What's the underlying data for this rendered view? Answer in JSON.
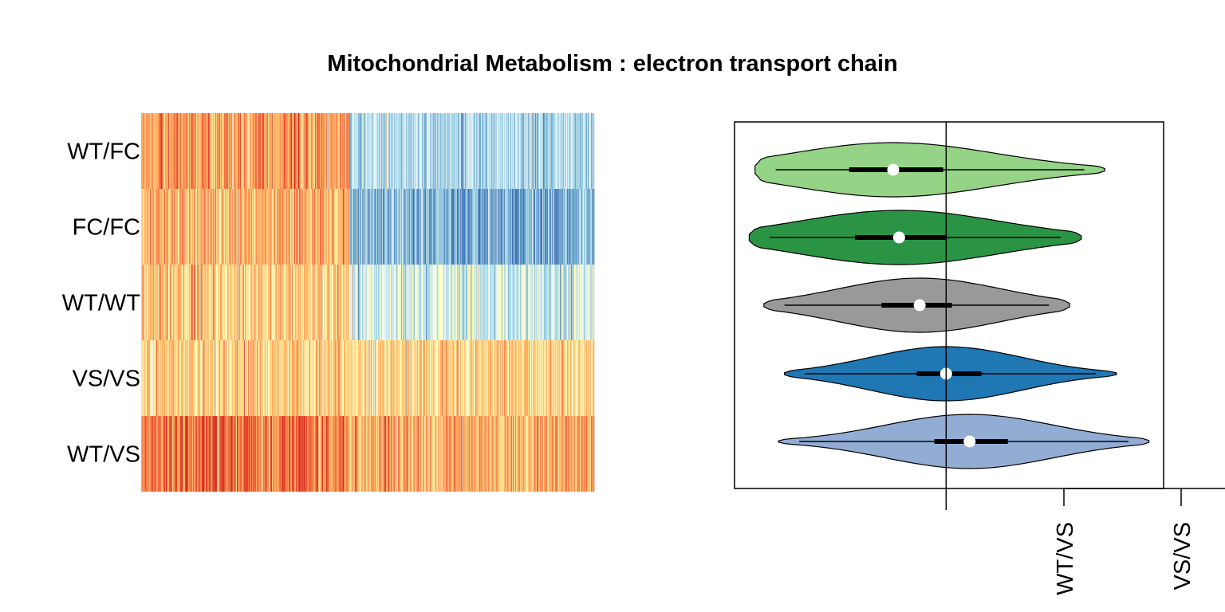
{
  "chart_data": [
    {
      "type": "heatmap",
      "title": "Mitochondrial Metabolism : electron transport chain",
      "rows": [
        "WT/FC",
        "FC/FC",
        "WT/WT",
        "VS/VS",
        "WT/VS"
      ],
      "palette": [
        "#d7301f",
        "#f46d43",
        "#fdae61",
        "#fee090",
        "#ffffbf",
        "#e0f3f8",
        "#abd9e9",
        "#74add1",
        "#4575b4"
      ],
      "split_fraction": 0.46,
      "row_bias": {
        "WT/FC": {
          "left": 0.25,
          "right": 0.72
        },
        "FC/FC": {
          "left": 0.3,
          "right": 0.8
        },
        "WT/WT": {
          "left": 0.35,
          "right": 0.64
        },
        "VS/VS": {
          "left": 0.36,
          "right": 0.38
        },
        "WT/VS": {
          "left": 0.18,
          "right": 0.3
        }
      }
    },
    {
      "type": "violin",
      "xlabel": "",
      "ylabel": "",
      "x_tick_labels": [
        "WT/VS",
        "VS/VS"
      ],
      "xlim": [
        -3.6,
        3.7
      ],
      "zero_line": 0,
      "series": [
        {
          "name": "WT/FC",
          "color": "#95d486",
          "min": -3.25,
          "q1": -1.65,
          "median": -0.9,
          "q3": -0.05,
          "max": 2.7,
          "width": 1.0,
          "peak": -0.9
        },
        {
          "name": "FC/FC",
          "color": "#2a9444",
          "min": -3.35,
          "q1": -1.55,
          "median": -0.8,
          "q3": 0.0,
          "max": 2.3,
          "width": 1.0,
          "peak": -0.8
        },
        {
          "name": "WT/WT",
          "color": "#999999",
          "min": -3.1,
          "q1": -1.1,
          "median": -0.45,
          "q3": 0.1,
          "max": 2.1,
          "width": 1.0,
          "peak": -0.45
        },
        {
          "name": "VS/VS",
          "color": "#1f77b4",
          "min": -2.75,
          "q1": -0.5,
          "median": 0.0,
          "q3": 0.6,
          "max": 2.9,
          "width": 1.0,
          "peak": 0.0
        },
        {
          "name": "WT/VS",
          "color": "#93acd4",
          "min": -2.85,
          "q1": -0.2,
          "median": 0.4,
          "q3": 1.05,
          "max": 3.45,
          "width": 1.0,
          "peak": 0.4
        }
      ]
    }
  ]
}
